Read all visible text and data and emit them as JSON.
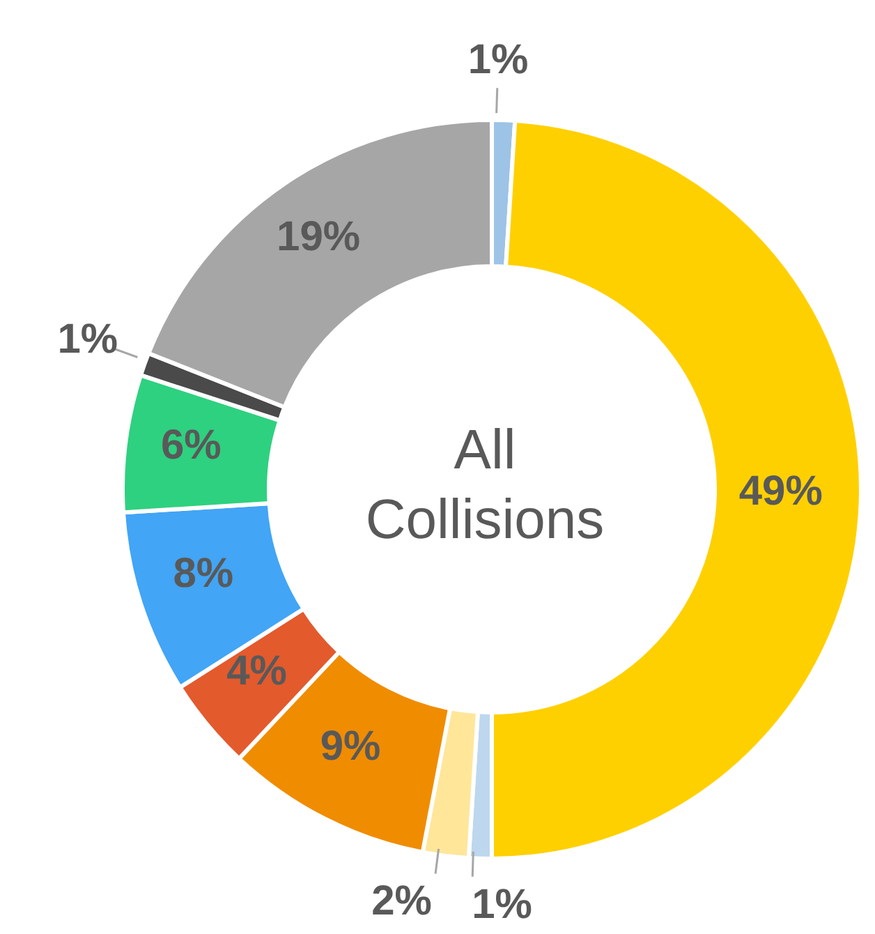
{
  "chart_data": {
    "type": "donut",
    "title": "All Collisions",
    "categories": [
      null,
      null,
      null,
      null,
      null,
      null,
      null,
      null,
      null,
      null
    ],
    "values": [
      1,
      49,
      1,
      2,
      9,
      4,
      8,
      6,
      1,
      19
    ],
    "colors": [
      "#9dc3e6",
      "#ffd000",
      "#bdd7ee",
      "#ffe699",
      "#f08c00",
      "#e35a2d",
      "#42a5f5",
      "#2ed17f",
      "#4a4a4a",
      "#a6a6a6"
    ],
    "value_labels": [
      "1%",
      "49%",
      "1%",
      "2%",
      "9%",
      "4%",
      "8%",
      "6%",
      "1%",
      "19%"
    ]
  }
}
